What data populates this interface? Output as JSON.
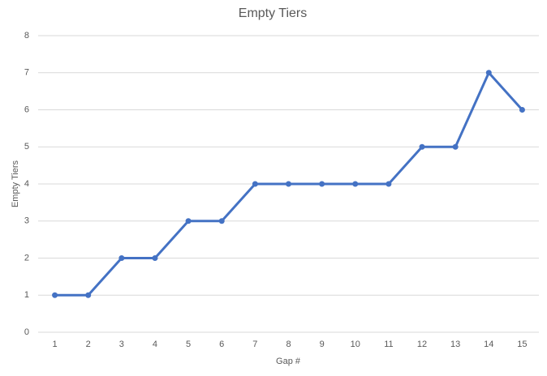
{
  "chart_data": {
    "type": "line",
    "title": "Empty Tiers",
    "x_label": "Gap #",
    "y_label": "Empty Tiers",
    "categories": [
      1,
      2,
      3,
      4,
      5,
      6,
      7,
      8,
      9,
      10,
      11,
      12,
      13,
      14,
      15
    ],
    "values": [
      1,
      1,
      2,
      2,
      3,
      3,
      4,
      4,
      4,
      4,
      4,
      5,
      5,
      7,
      6
    ],
    "color": "#4472c4",
    "ylim": [
      0,
      8
    ],
    "yticks": [
      0,
      1,
      2,
      3,
      4,
      5,
      6,
      7,
      8
    ],
    "grid": true
  }
}
